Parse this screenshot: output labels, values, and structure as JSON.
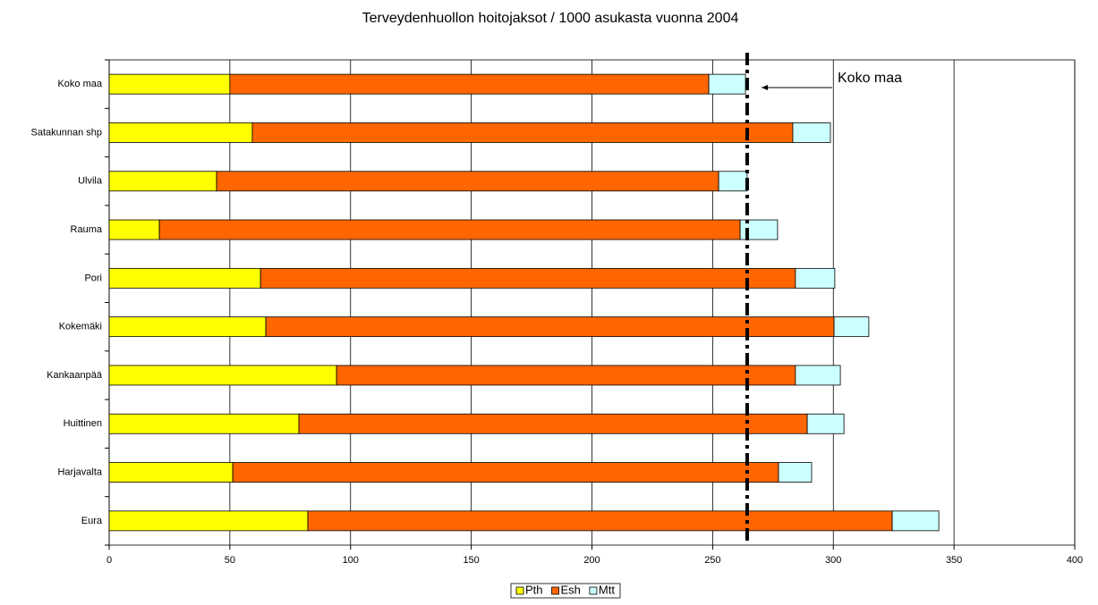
{
  "chart_data": {
    "type": "stacked-bar-horizontal",
    "title": "Terveydenhuollon hoitojaksot / 1000 asukasta vuonna 2004",
    "categories": [
      "Koko maa",
      "Satakunnan shp",
      "Ulvila",
      "Rauma",
      "Pori",
      "Kokemäki",
      "Kankaanpää",
      "Huittinen",
      "Harjavalta",
      "Eura"
    ],
    "series": [
      {
        "name": "Pth",
        "color": "#ffff00",
        "values": [
          50.0,
          59.3,
          44.5,
          20.8,
          62.7,
          64.9,
          94.2,
          78.6,
          51.2,
          82.3
        ]
      },
      {
        "name": "Esh",
        "color": "#ff6600",
        "values": [
          198.4,
          223.9,
          208.0,
          240.6,
          221.6,
          235.4,
          190.1,
          210.6,
          226.1,
          242.1
        ]
      },
      {
        "name": "Mtt",
        "color": "#ccffff",
        "values": [
          15.2,
          15.6,
          11.8,
          15.5,
          16.3,
          14.4,
          18.6,
          15.2,
          13.7,
          19.3
        ]
      }
    ],
    "xlim": [
      0,
      400
    ],
    "xticks": [
      0,
      50,
      100,
      150,
      200,
      250,
      300,
      350,
      400
    ],
    "grid": true,
    "legend": "bottom",
    "reference_line": {
      "value": 264.3,
      "label": "Koko maa"
    }
  }
}
